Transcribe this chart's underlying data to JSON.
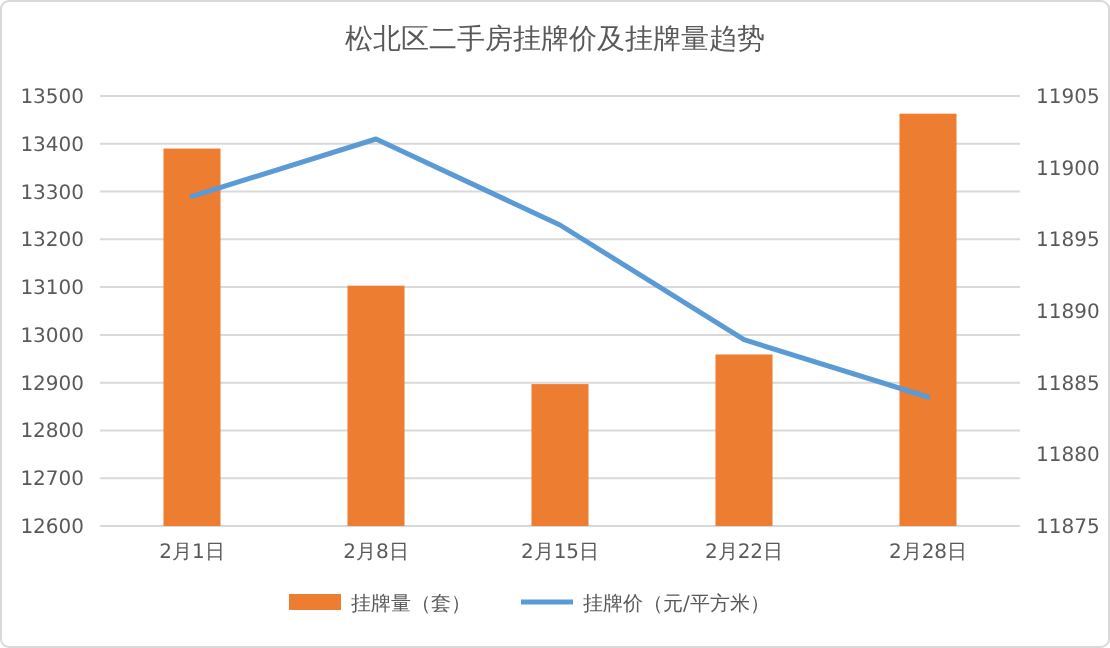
{
  "chart_data": {
    "type": "bar",
    "title": "松北区二手房挂牌价及挂牌量趋势",
    "categories": [
      "2月1日",
      "2月8日",
      "2月15日",
      "2月22日",
      "2月28日"
    ],
    "series": [
      {
        "name": "挂牌量（套）",
        "color": "#ed7d31",
        "values": [
          13390,
          13103,
          12897,
          12959,
          13463
        ]
      },
      {
        "name": "挂牌价（元/平方米）",
        "type": "line",
        "axis": "y2",
        "color": "#5b9bd5",
        "values": [
          11898,
          11902,
          11896,
          11888,
          11884
        ]
      }
    ],
    "ylim": [
      12600,
      13500
    ],
    "yticks": [
      12600,
      12700,
      12800,
      12900,
      13000,
      13100,
      13200,
      13300,
      13400,
      13500
    ],
    "y2lim": [
      11875,
      11905
    ],
    "y2ticks": [
      11875,
      11880,
      11885,
      11890,
      11895,
      11900,
      11905
    ],
    "grid": "y",
    "legend": "bottom",
    "line_style": "solid",
    "marker": "none"
  }
}
